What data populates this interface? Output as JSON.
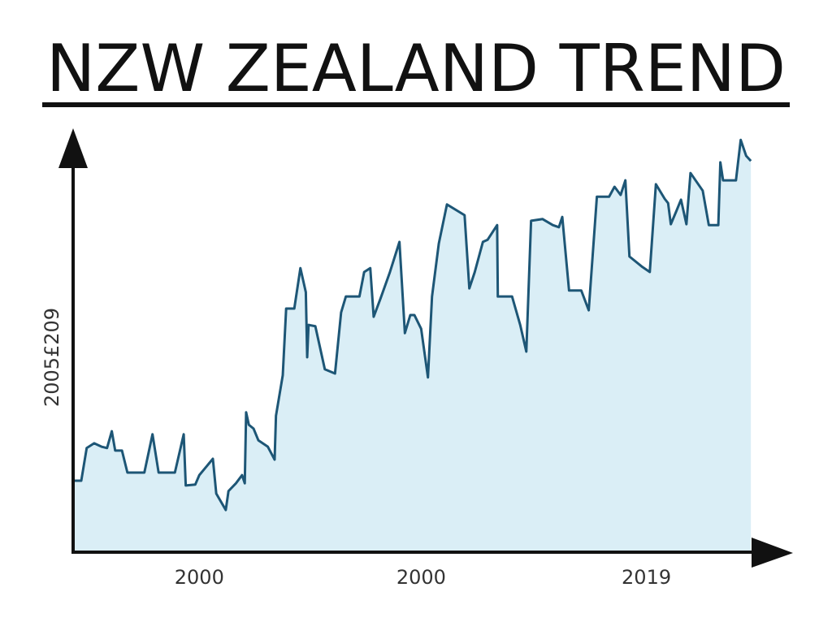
{
  "chart_data": {
    "type": "area",
    "title": "NZW ZEALAND TREND",
    "y_label": "2005£209",
    "x_labels": [
      "2000",
      "2000",
      "2019"
    ],
    "x": [
      0,
      1.2,
      2,
      3.1,
      4.2,
      5,
      5.7,
      6.2,
      7.2,
      8,
      10.5,
      11.7,
      12.6,
      15,
      16.3,
      16.6,
      18,
      18.6,
      20.6,
      21.1,
      22.5,
      22.9,
      24,
      24.9,
      25.3,
      25.5,
      25.9,
      26.6,
      27.3,
      28.7,
      29.7,
      29.9,
      30.9,
      31.4,
      32.6,
      33.5,
      34.3,
      34.5,
      34.7,
      35.7,
      37.1,
      38.6,
      39.5,
      40.2,
      42.2,
      42.9,
      43.8,
      44.3,
      45.3,
      46.7,
      48.1,
      48.9,
      49.7,
      50.3,
      51.3,
      52.3,
      52.9,
      53.9,
      55.1,
      57.7,
      58.4,
      59.2,
      60.4,
      61.1,
      62.5,
      62.6,
      64.7,
      65.9,
      66.8,
      67.5,
      69.2,
      70.7,
      71.6,
      72.1,
      73.1,
      74.9,
      76,
      77.2,
      79,
      79.8,
      80.7,
      81.4,
      82,
      83.8,
      85,
      85.9,
      87.2,
      87.7,
      88.1,
      88.9,
      89.6,
      90.4,
      91,
      92.8,
      93.7,
      95.1,
      95.4,
      95.8,
      97.7,
      98.4,
      99.2,
      99.9
    ],
    "series": [
      {
        "color": "#1d5676",
        "fill": "#daeef6",
        "values": [
          16.6,
          16.6,
          24.2,
          25.3,
          24.5,
          24.2,
          28.1,
          23.6,
          23.6,
          18.5,
          18.5,
          27.4,
          18.5,
          18.5,
          27.4,
          15.5,
          15.7,
          17.9,
          21.7,
          13.6,
          9.8,
          14.2,
          16,
          17.9,
          16,
          32.5,
          29.6,
          28.7,
          26,
          24.5,
          21.5,
          31.7,
          41.1,
          56.6,
          56.6,
          66,
          60.4,
          45.3,
          52.8,
          52.5,
          42.5,
          41.5,
          55.7,
          59.4,
          59.4,
          65.1,
          66,
          54.7,
          58.9,
          65.1,
          72.1,
          50.9,
          55.1,
          55.1,
          51.9,
          40.6,
          59.4,
          71.7,
          80.8,
          78.3,
          61.3,
          65.1,
          72.1,
          72.6,
          76,
          59.4,
          59.4,
          52.8,
          46.6,
          77,
          77.4,
          76,
          75.5,
          77.9,
          60.8,
          60.8,
          56.2,
          82.6,
          82.6,
          84.9,
          83,
          86.4,
          68.7,
          66.4,
          65.1,
          85.5,
          82.1,
          81.1,
          76.2,
          79.2,
          81.9,
          76.2,
          88.1,
          84,
          76,
          76,
          90.6,
          86.4,
          86.4,
          95.8,
          92.1,
          90.9
        ]
      }
    ],
    "xlim": [
      0,
      100
    ],
    "ylim": [
      0,
      100
    ]
  }
}
